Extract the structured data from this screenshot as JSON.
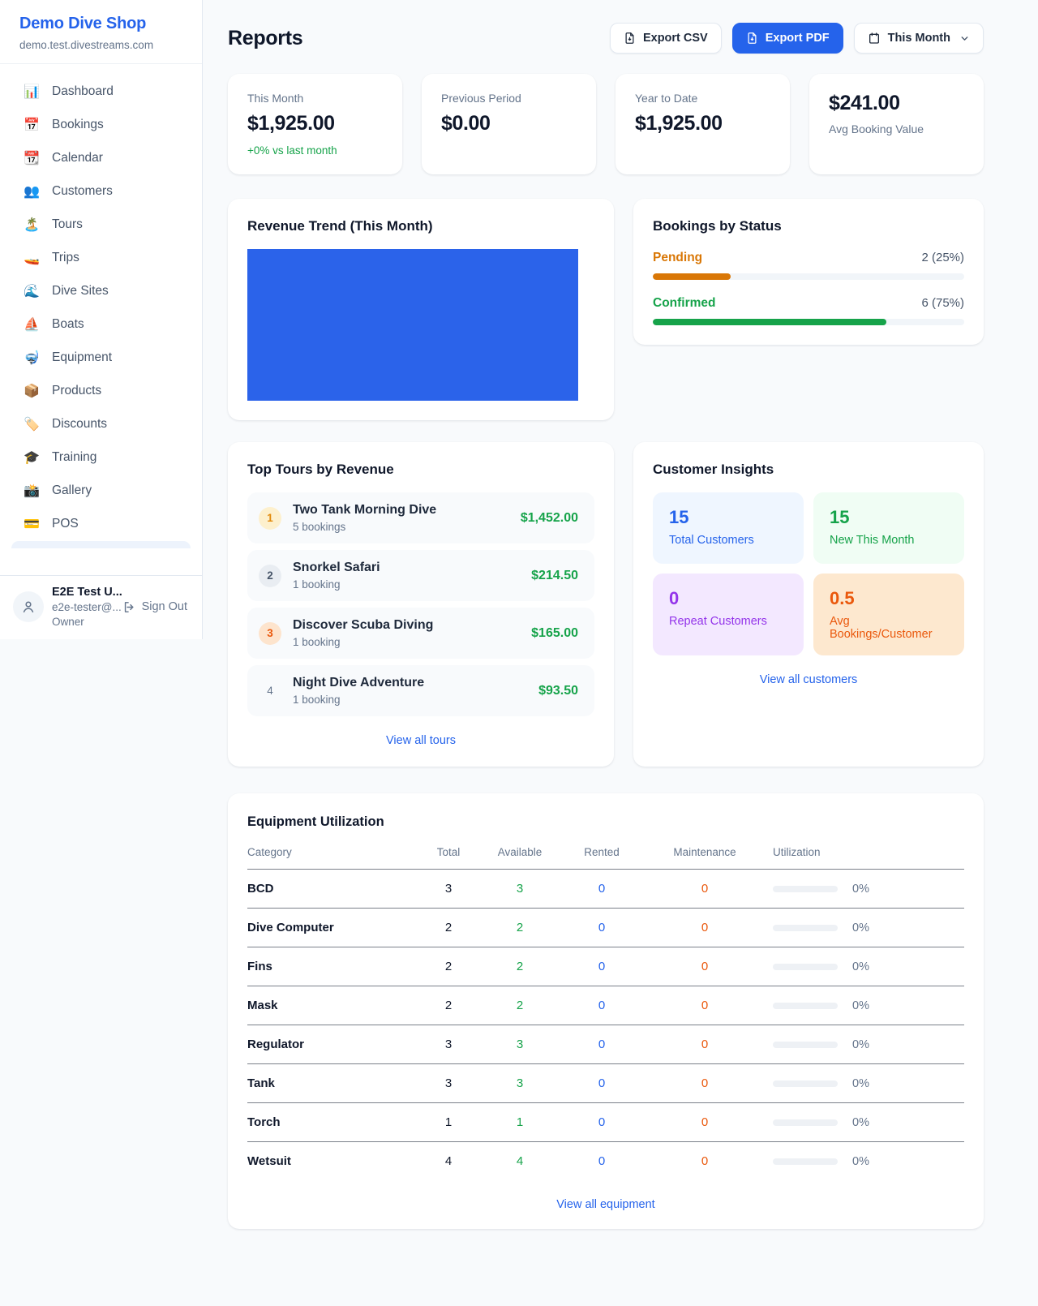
{
  "colors": {
    "brand_blue": "#2563eb",
    "chart_blue": "#2b63ea",
    "success_green": "#16a34a",
    "pending_orange": "#d97706",
    "deep_orange": "#ea580c",
    "purple": "#9333ea",
    "page_background": "#f8fafc"
  },
  "sidebar": {
    "title": "Demo Dive Shop",
    "subdomain": "demo.test.divestreams.com",
    "items": [
      {
        "icon": "📊",
        "label": "Dashboard"
      },
      {
        "icon": "📅",
        "label": "Bookings"
      },
      {
        "icon": "📆",
        "label": "Calendar"
      },
      {
        "icon": "👥",
        "label": "Customers"
      },
      {
        "icon": "🏝️",
        "label": "Tours"
      },
      {
        "icon": "🚤",
        "label": "Trips"
      },
      {
        "icon": "🌊",
        "label": "Dive Sites"
      },
      {
        "icon": "⛵",
        "label": "Boats"
      },
      {
        "icon": "🤿",
        "label": "Equipment"
      },
      {
        "icon": "📦",
        "label": "Products"
      },
      {
        "icon": "🏷️",
        "label": "Discounts"
      },
      {
        "icon": "🎓",
        "label": "Training"
      },
      {
        "icon": "📸",
        "label": "Gallery"
      },
      {
        "icon": "💳",
        "label": "POS"
      }
    ],
    "user": {
      "name": "E2E Test U...",
      "email": "e2e-tester@...",
      "role": "Owner",
      "signout_label": "Sign Out"
    }
  },
  "header": {
    "title": "Reports",
    "export_csv_label": "Export CSV",
    "export_pdf_label": "Export PDF",
    "period_label": "This Month"
  },
  "stats": [
    {
      "label": "This Month",
      "value": "$1,925.00",
      "note": "+0% vs last month"
    },
    {
      "label": "Previous Period",
      "value": "$0.00"
    },
    {
      "label": "Year to Date",
      "value": "$1,925.00"
    },
    {
      "label": "Avg Booking Value",
      "value": "$241.00"
    }
  ],
  "revenue_trend": {
    "title": "Revenue Trend (This Month)",
    "chart": {
      "type": "bar",
      "note": "single solid blue block filling the plot area, no axis labels",
      "fill_color": "#2b63ea"
    }
  },
  "bookings_by_status": {
    "title": "Bookings by Status",
    "rows": [
      {
        "label": "Pending",
        "value": "2 (25%)",
        "pct": 25
      },
      {
        "label": "Confirmed",
        "value": "6 (75%)",
        "pct": 75
      }
    ]
  },
  "top_tours": {
    "title": "Top Tours by Revenue",
    "rows": [
      {
        "rank": "1",
        "name": "Two Tank Morning Dive",
        "bookings": "5 bookings",
        "amount": "$1,452.00"
      },
      {
        "rank": "2",
        "name": "Snorkel Safari",
        "bookings": "1 booking",
        "amount": "$214.50"
      },
      {
        "rank": "3",
        "name": "Discover Scuba Diving",
        "bookings": "1 booking",
        "amount": "$165.00"
      },
      {
        "rank": "4",
        "name": "Night Dive Adventure",
        "bookings": "1 booking",
        "amount": "$93.50"
      }
    ],
    "link": "View all tours"
  },
  "customer_insights": {
    "title": "Customer Insights",
    "tiles": [
      {
        "value": "15",
        "label": "Total Customers",
        "color": "#2563eb"
      },
      {
        "value": "15",
        "label": "New This Month",
        "color": "#16a34a"
      },
      {
        "value": "0",
        "label": "Repeat Customers",
        "color": "#9333ea"
      },
      {
        "value": "0.5",
        "label": "Avg Bookings/Customer",
        "color": "#ea580c"
      }
    ],
    "link": "View all customers"
  },
  "equipment": {
    "title": "Equipment Utilization",
    "columns": [
      "Category",
      "Total",
      "Available",
      "Rented",
      "Maintenance",
      "Utilization"
    ],
    "rows": [
      {
        "category": "BCD",
        "total": "3",
        "available": "3",
        "rented": "0",
        "maintenance": "0",
        "utilization": "0%",
        "utilization_pct": 0
      },
      {
        "category": "Dive Computer",
        "total": "2",
        "available": "2",
        "rented": "0",
        "maintenance": "0",
        "utilization": "0%",
        "utilization_pct": 0
      },
      {
        "category": "Fins",
        "total": "2",
        "available": "2",
        "rented": "0",
        "maintenance": "0",
        "utilization": "0%",
        "utilization_pct": 0
      },
      {
        "category": "Mask",
        "total": "2",
        "available": "2",
        "rented": "0",
        "maintenance": "0",
        "utilization": "0%",
        "utilization_pct": 0
      },
      {
        "category": "Regulator",
        "total": "3",
        "available": "3",
        "rented": "0",
        "maintenance": "0",
        "utilization": "0%",
        "utilization_pct": 0
      },
      {
        "category": "Tank",
        "total": "3",
        "available": "3",
        "rented": "0",
        "maintenance": "0",
        "utilization": "0%",
        "utilization_pct": 0
      },
      {
        "category": "Torch",
        "total": "1",
        "available": "1",
        "rented": "0",
        "maintenance": "0",
        "utilization": "0%",
        "utilization_pct": 0
      },
      {
        "category": "Wetsuit",
        "total": "4",
        "available": "4",
        "rented": "0",
        "maintenance": "0",
        "utilization": "0%",
        "utilization_pct": 0
      }
    ],
    "link": "View all equipment"
  }
}
